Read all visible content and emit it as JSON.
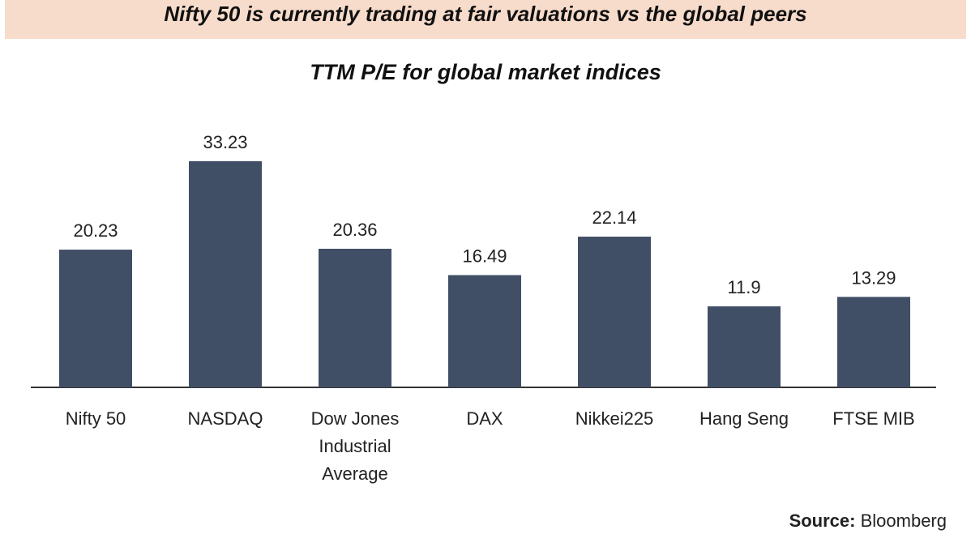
{
  "header": {
    "banner_text": "Nifty 50 is currently trading at fair valuations vs the global peers"
  },
  "chart_data": {
    "type": "bar",
    "title": "TTM P/E for global market indices",
    "categories": [
      [
        "Nifty 50"
      ],
      [
        "NASDAQ"
      ],
      [
        "Dow Jones",
        "Industrial",
        "Average"
      ],
      [
        "DAX"
      ],
      [
        "Nikkei225"
      ],
      [
        "Hang Seng"
      ],
      [
        "FTSE MIB"
      ]
    ],
    "values": [
      20.23,
      33.23,
      20.36,
      16.49,
      22.14,
      11.9,
      13.29
    ],
    "value_labels": [
      "20.23",
      "33.23",
      "20.36",
      "16.49",
      "22.14",
      "11.9",
      "13.29"
    ],
    "bar_color": "#414f66",
    "axis_color": "#333333",
    "grid": false,
    "legend": "none"
  },
  "footer": {
    "source_key": "Source:",
    "source_value": " Bloomberg"
  }
}
